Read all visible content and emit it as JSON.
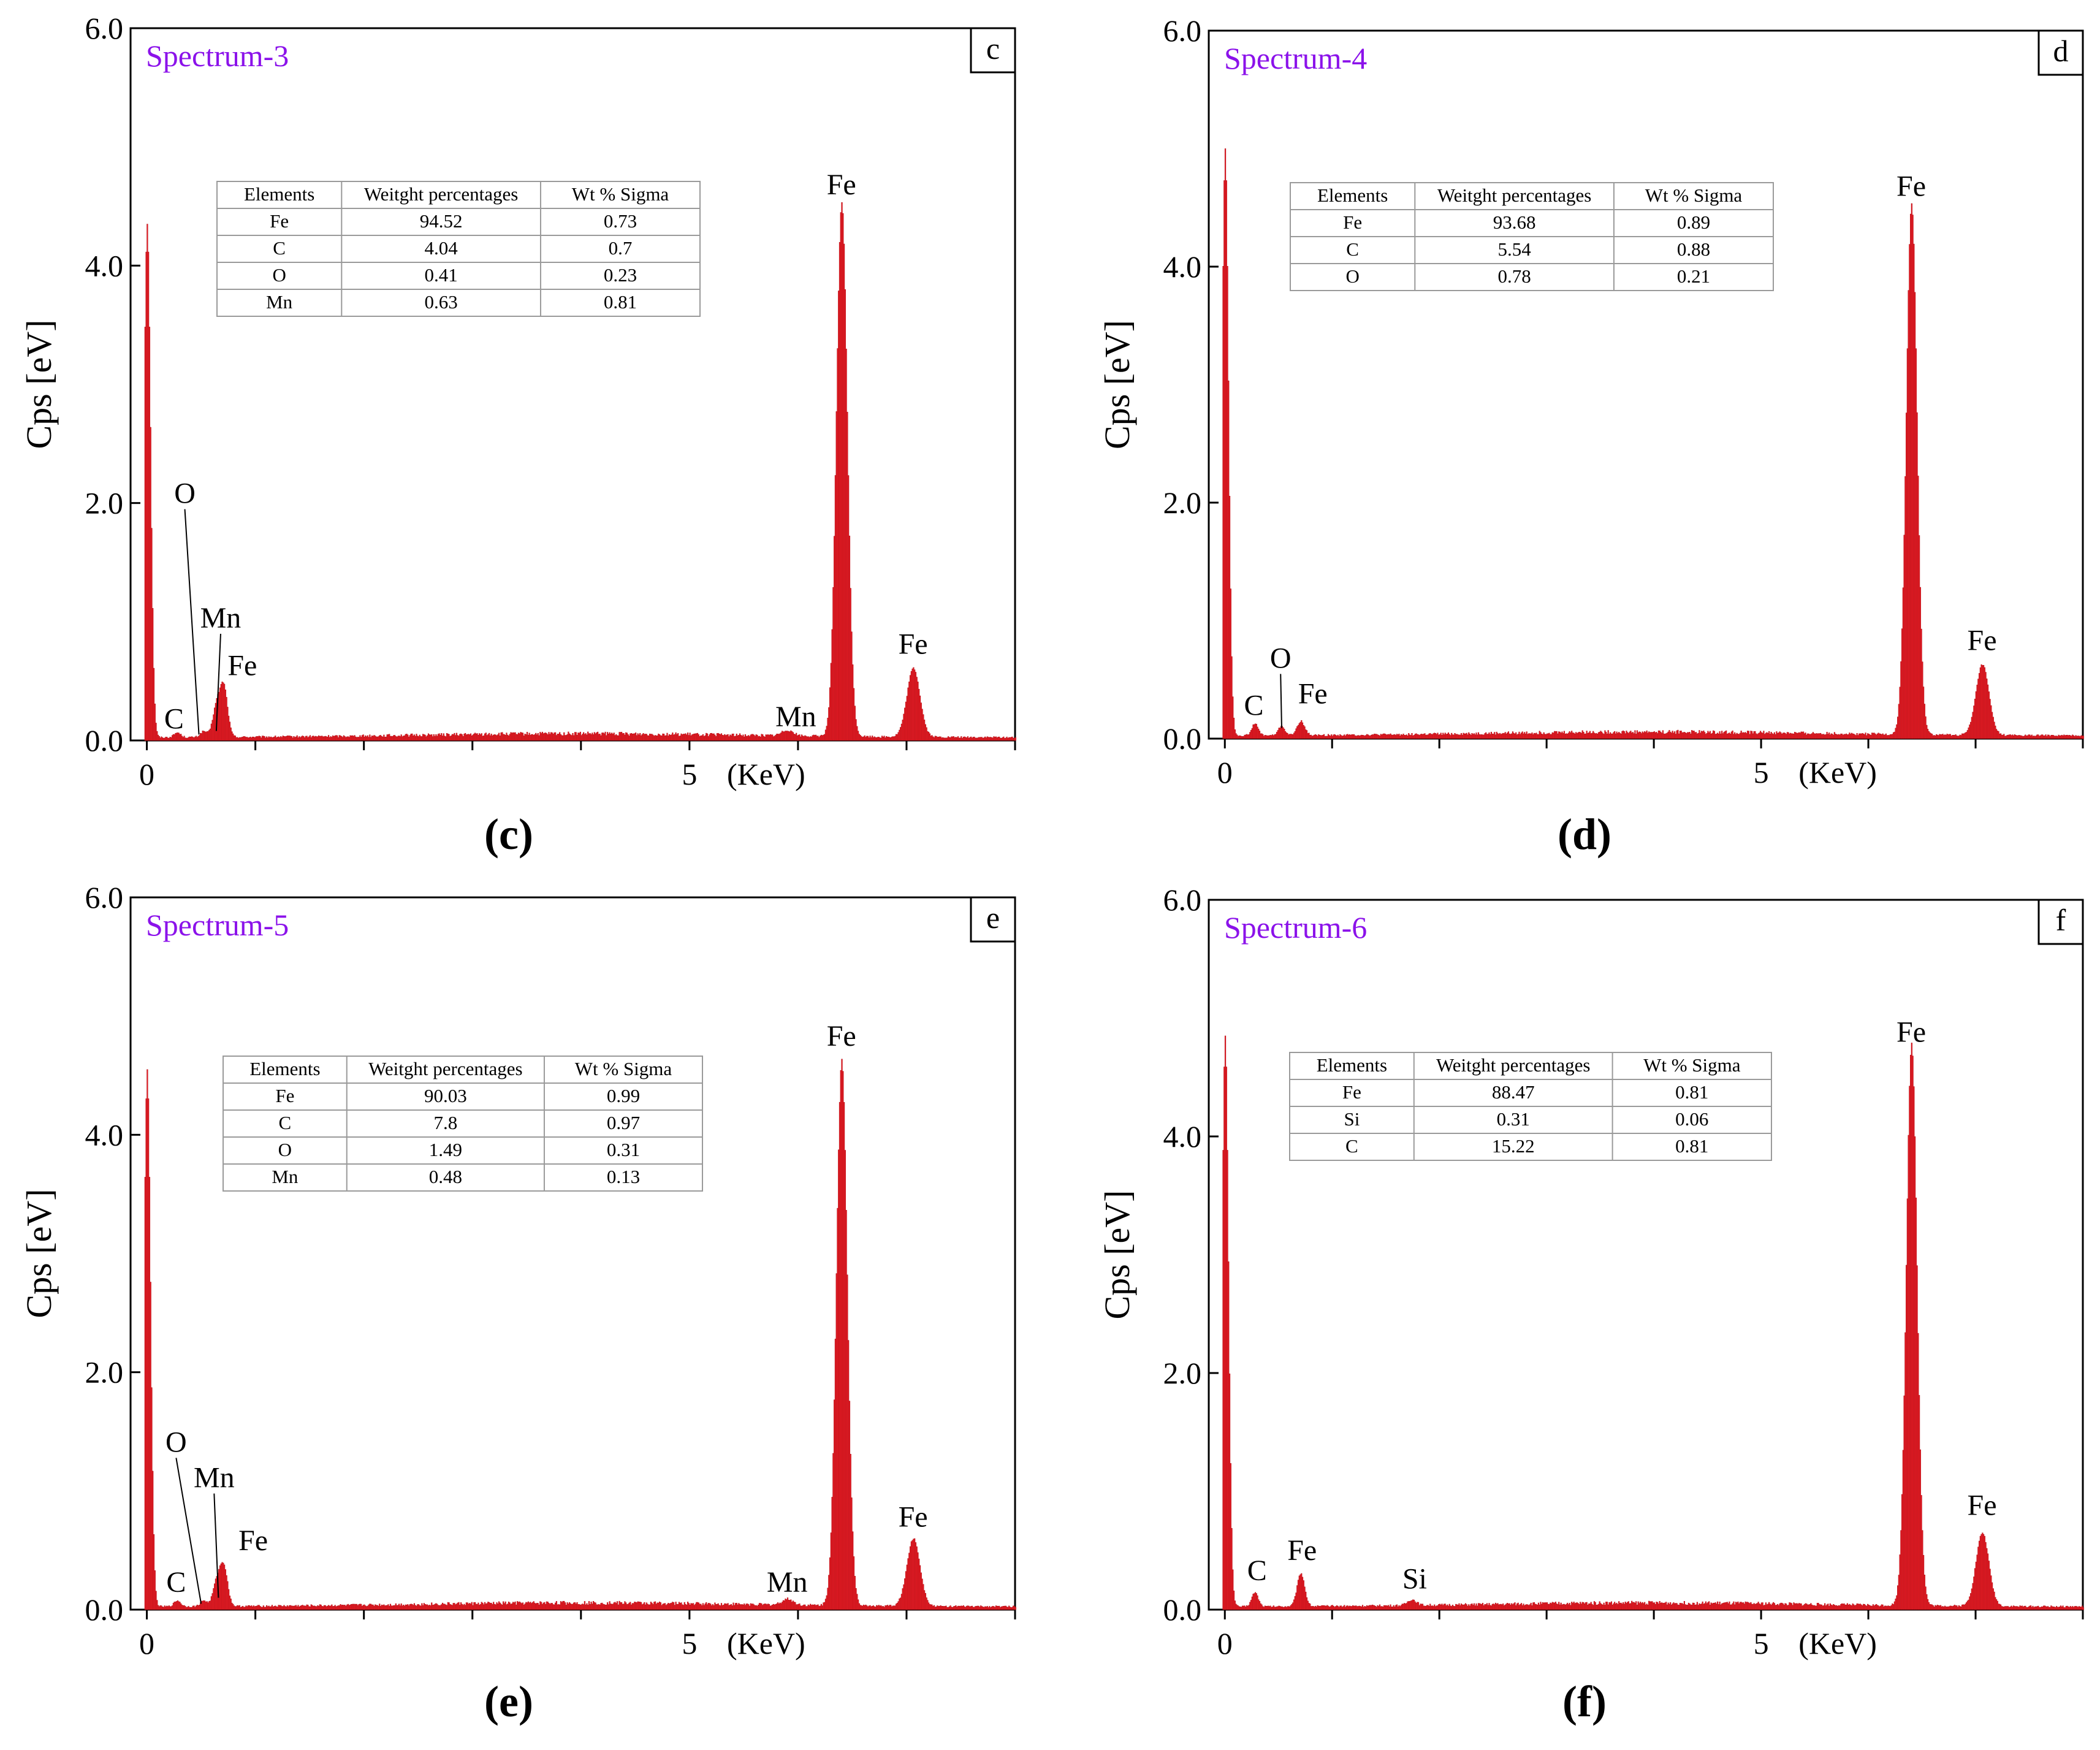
{
  "figure": {
    "colors": {
      "bar": "#ee1c25",
      "bar_stroke": "#b3131a",
      "spectrum_title": "#8b12ea",
      "axis": "#000000",
      "table_border": "#9a9a9a"
    }
  },
  "chart_data": [
    {
      "panel": "c",
      "type": "bar",
      "title": "Spectrum-3",
      "caption": "(c)",
      "xlabel": "(KeV)",
      "ylabel": "Cps [eV]",
      "ylim": [
        0.0,
        6.0
      ],
      "xlim": [
        -0.15,
        8.0
      ],
      "x_ticks": [
        {
          "value": 0,
          "label": "0"
        },
        {
          "value": 5,
          "label": "5"
        }
      ],
      "y_ticks": [
        "0.0",
        "2.0",
        "4.0",
        "6.0"
      ],
      "y_tick_values": [
        0.0,
        2.0,
        4.0,
        6.0
      ],
      "noise_floor": 0.04,
      "peaks": [
        {
          "x": 0.0,
          "y": 4.35,
          "width": 0.03
        },
        {
          "x": 0.277,
          "y": 0.04,
          "width": 0.03
        },
        {
          "x": 0.52,
          "y": 0.05,
          "width": 0.03
        },
        {
          "x": 0.637,
          "y": 0.25,
          "width": 0.035
        },
        {
          "x": 0.705,
          "y": 0.42,
          "width": 0.035
        },
        {
          "x": 5.9,
          "y": 0.05,
          "width": 0.05
        },
        {
          "x": 6.4,
          "y": 4.5,
          "width": 0.05
        },
        {
          "x": 7.06,
          "y": 0.58,
          "width": 0.06
        }
      ],
      "peak_labels": [
        {
          "text": "O",
          "x": 0.35,
          "y": 2.0,
          "leader_to": [
            0.48,
            0.05
          ]
        },
        {
          "text": "Mn",
          "x": 0.68,
          "y": 0.95,
          "leader_to": [
            0.64,
            0.08
          ]
        },
        {
          "text": "Fe",
          "x": 0.88,
          "y": 0.55
        },
        {
          "text": "C",
          "x": 0.25,
          "y": 0.1
        },
        {
          "text": "Mn",
          "x": 5.98,
          "y": 0.12
        },
        {
          "text": "Fe",
          "x": 6.4,
          "y": 4.6
        },
        {
          "text": "Fe",
          "x": 7.06,
          "y": 0.73
        }
      ],
      "table": {
        "headers": [
          "Elements",
          "Weitght percentages",
          "Wt % Sigma"
        ],
        "rows": [
          [
            "Fe",
            "94.52",
            "0.73"
          ],
          [
            "C",
            "4.04",
            "0.7"
          ],
          [
            "O",
            "0.41",
            "0.23"
          ],
          [
            "Mn",
            "0.63",
            "0.81"
          ]
        ]
      }
    },
    {
      "panel": "d",
      "type": "bar",
      "title": "Spectrum-4",
      "caption": "(d)",
      "xlabel": "(KeV)",
      "ylabel": "Cps [eV]",
      "ylim": [
        0.0,
        6.0
      ],
      "xlim": [
        -0.15,
        8.0
      ],
      "x_ticks": [
        {
          "value": 0,
          "label": "0"
        },
        {
          "value": 5,
          "label": "5"
        }
      ],
      "y_ticks": [
        "0.0",
        "2.0",
        "4.0",
        "6.0"
      ],
      "y_tick_values": [
        0.0,
        2.0,
        4.0,
        6.0
      ],
      "noise_floor": 0.04,
      "peaks": [
        {
          "x": 0.0,
          "y": 5.0,
          "width": 0.03
        },
        {
          "x": 0.277,
          "y": 0.1,
          "width": 0.03
        },
        {
          "x": 0.525,
          "y": 0.08,
          "width": 0.03
        },
        {
          "x": 0.705,
          "y": 0.12,
          "width": 0.035
        },
        {
          "x": 6.4,
          "y": 4.5,
          "width": 0.05
        },
        {
          "x": 7.06,
          "y": 0.6,
          "width": 0.06
        }
      ],
      "peak_labels": [
        {
          "text": "O",
          "x": 0.52,
          "y": 0.6,
          "leader_to": [
            0.53,
            0.09
          ]
        },
        {
          "text": "C",
          "x": 0.27,
          "y": 0.2
        },
        {
          "text": "Fe",
          "x": 0.82,
          "y": 0.3
        },
        {
          "text": "Fe",
          "x": 6.4,
          "y": 4.6
        },
        {
          "text": "Fe",
          "x": 7.06,
          "y": 0.75
        }
      ],
      "table": {
        "headers": [
          "Elements",
          "Weitght percentages",
          "Wt % Sigma"
        ],
        "rows": [
          [
            "Fe",
            "93.68",
            "0.89"
          ],
          [
            "C",
            "5.54",
            "0.88"
          ],
          [
            "O",
            "0.78",
            "0.21"
          ]
        ]
      }
    },
    {
      "panel": "e",
      "type": "bar",
      "title": "Spectrum-5",
      "caption": "(e)",
      "xlabel": "(KeV)",
      "ylabel": "Cps [eV]",
      "ylim": [
        0.0,
        6.0
      ],
      "xlim": [
        -0.15,
        8.0
      ],
      "x_ticks": [
        {
          "value": 0,
          "label": "0"
        },
        {
          "value": 5,
          "label": "5"
        }
      ],
      "y_ticks": [
        "0.0",
        "2.0",
        "4.0",
        "6.0"
      ],
      "y_tick_values": [
        0.0,
        2.0,
        4.0,
        6.0
      ],
      "noise_floor": 0.04,
      "peaks": [
        {
          "x": 0.0,
          "y": 4.55,
          "width": 0.03
        },
        {
          "x": 0.277,
          "y": 0.05,
          "width": 0.03
        },
        {
          "x": 0.52,
          "y": 0.05,
          "width": 0.03
        },
        {
          "x": 0.64,
          "y": 0.2,
          "width": 0.035
        },
        {
          "x": 0.705,
          "y": 0.33,
          "width": 0.035
        },
        {
          "x": 5.9,
          "y": 0.05,
          "width": 0.05
        },
        {
          "x": 6.4,
          "y": 4.6,
          "width": 0.05
        },
        {
          "x": 7.06,
          "y": 0.57,
          "width": 0.06
        }
      ],
      "peak_labels": [
        {
          "text": "O",
          "x": 0.27,
          "y": 1.33,
          "leader_to": [
            0.5,
            0.05
          ]
        },
        {
          "text": "Mn",
          "x": 0.62,
          "y": 1.03,
          "leader_to": [
            0.66,
            0.1
          ]
        },
        {
          "text": "Fe",
          "x": 0.98,
          "y": 0.5
        },
        {
          "text": "C",
          "x": 0.27,
          "y": 0.15
        },
        {
          "text": "Mn",
          "x": 5.9,
          "y": 0.15
        },
        {
          "text": "Fe",
          "x": 6.4,
          "y": 4.75
        },
        {
          "text": "Fe",
          "x": 7.06,
          "y": 0.7
        }
      ],
      "table": {
        "headers": [
          "Elements",
          "Weitght percentages",
          "Wt % Sigma"
        ],
        "rows": [
          [
            "Fe",
            "90.03",
            "0.99"
          ],
          [
            "C",
            "7.8",
            "0.97"
          ],
          [
            "O",
            "1.49",
            "0.31"
          ],
          [
            "Mn",
            "0.48",
            "0.13"
          ]
        ]
      }
    },
    {
      "panel": "f",
      "type": "bar",
      "title": "Spectrum-6",
      "caption": "(f)",
      "xlabel": "(KeV)",
      "ylabel": "Cps [eV]",
      "ylim": [
        0.0,
        6.0
      ],
      "xlim": [
        -0.15,
        8.0
      ],
      "x_ticks": [
        {
          "value": 0,
          "label": "0"
        },
        {
          "value": 5,
          "label": "5"
        }
      ],
      "y_ticks": [
        "0.0",
        "2.0",
        "4.0",
        "6.0"
      ],
      "y_tick_values": [
        0.0,
        2.0,
        4.0,
        6.0
      ],
      "noise_floor": 0.04,
      "peaks": [
        {
          "x": 0.0,
          "y": 4.85,
          "width": 0.03
        },
        {
          "x": 0.277,
          "y": 0.12,
          "width": 0.03
        },
        {
          "x": 0.705,
          "y": 0.28,
          "width": 0.035
        },
        {
          "x": 1.74,
          "y": 0.05,
          "width": 0.04
        },
        {
          "x": 6.4,
          "y": 4.75,
          "width": 0.05
        },
        {
          "x": 7.06,
          "y": 0.62,
          "width": 0.06
        }
      ],
      "peak_labels": [
        {
          "text": "C",
          "x": 0.3,
          "y": 0.25
        },
        {
          "text": "Fe",
          "x": 0.72,
          "y": 0.42
        },
        {
          "text": "Si",
          "x": 1.77,
          "y": 0.18
        },
        {
          "text": "Fe",
          "x": 6.4,
          "y": 4.8
        },
        {
          "text": "Fe",
          "x": 7.06,
          "y": 0.8
        }
      ],
      "table": {
        "headers": [
          "Elements",
          "Weitght percentages",
          "Wt % Sigma"
        ],
        "rows": [
          [
            "Fe",
            "88.47",
            "0.81"
          ],
          [
            "Si",
            "0.31",
            "0.06"
          ],
          [
            "C",
            "15.22",
            "0.81"
          ]
        ]
      }
    }
  ]
}
